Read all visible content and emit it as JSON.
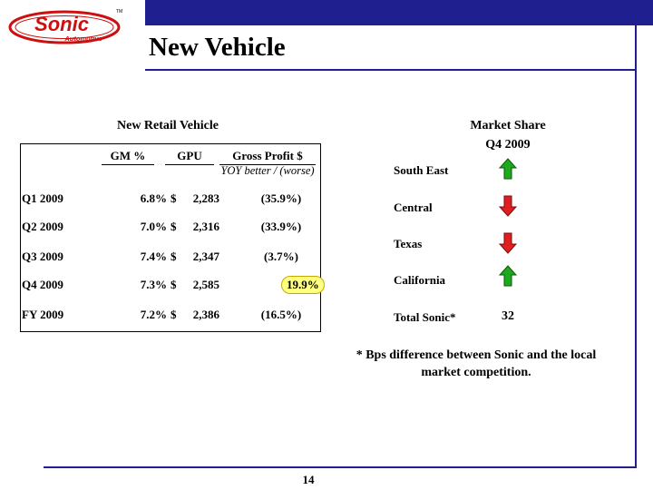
{
  "header": {
    "logo": {
      "brand": "Sonic",
      "sub": "Automotive",
      "tm": "TM"
    },
    "title": "New Vehicle",
    "page_number": "14",
    "colors": {
      "accent": "#1f1f8f",
      "logo_red": "#cc1010",
      "highlight": "#ffff80"
    }
  },
  "retail": {
    "heading": "New Retail Vehicle",
    "columns": {
      "gm": "GM %",
      "gpu": "GPU",
      "gross_profit": "Gross Profit $"
    },
    "yoy_label": "YOY better / (worse)",
    "currency_symbol": "$",
    "rows": [
      {
        "label": "Q1 2009",
        "gm": "6.8%",
        "gpu": "2,283",
        "gp": "(35.9%)"
      },
      {
        "label": "Q2 2009",
        "gm": "7.0%",
        "gpu": "2,316",
        "gp": "(33.9%)"
      },
      {
        "label": "Q3 2009",
        "gm": "7.4%",
        "gpu": "2,347",
        "gp": "(3.7%)"
      },
      {
        "label": "Q4 2009",
        "gm": "7.3%",
        "gpu": "2,585",
        "gp": "19.9%"
      },
      {
        "label": "FY 2009",
        "gm": "7.2%",
        "gpu": "2,386",
        "gp": "(16.5%)"
      }
    ]
  },
  "market_share": {
    "heading": "Market Share",
    "period": "Q4 2009",
    "regions": [
      {
        "name": "South East",
        "direction": "up",
        "icon": "arrow-up-icon"
      },
      {
        "name": "Central",
        "direction": "down",
        "icon": "arrow-down-icon"
      },
      {
        "name": "Texas",
        "direction": "down",
        "icon": "arrow-down-icon"
      },
      {
        "name": "California",
        "direction": "up",
        "icon": "arrow-up-icon"
      }
    ],
    "total_label": "Total Sonic*",
    "total_value": "32",
    "footnote": "* Bps difference between Sonic and the local market competition."
  }
}
